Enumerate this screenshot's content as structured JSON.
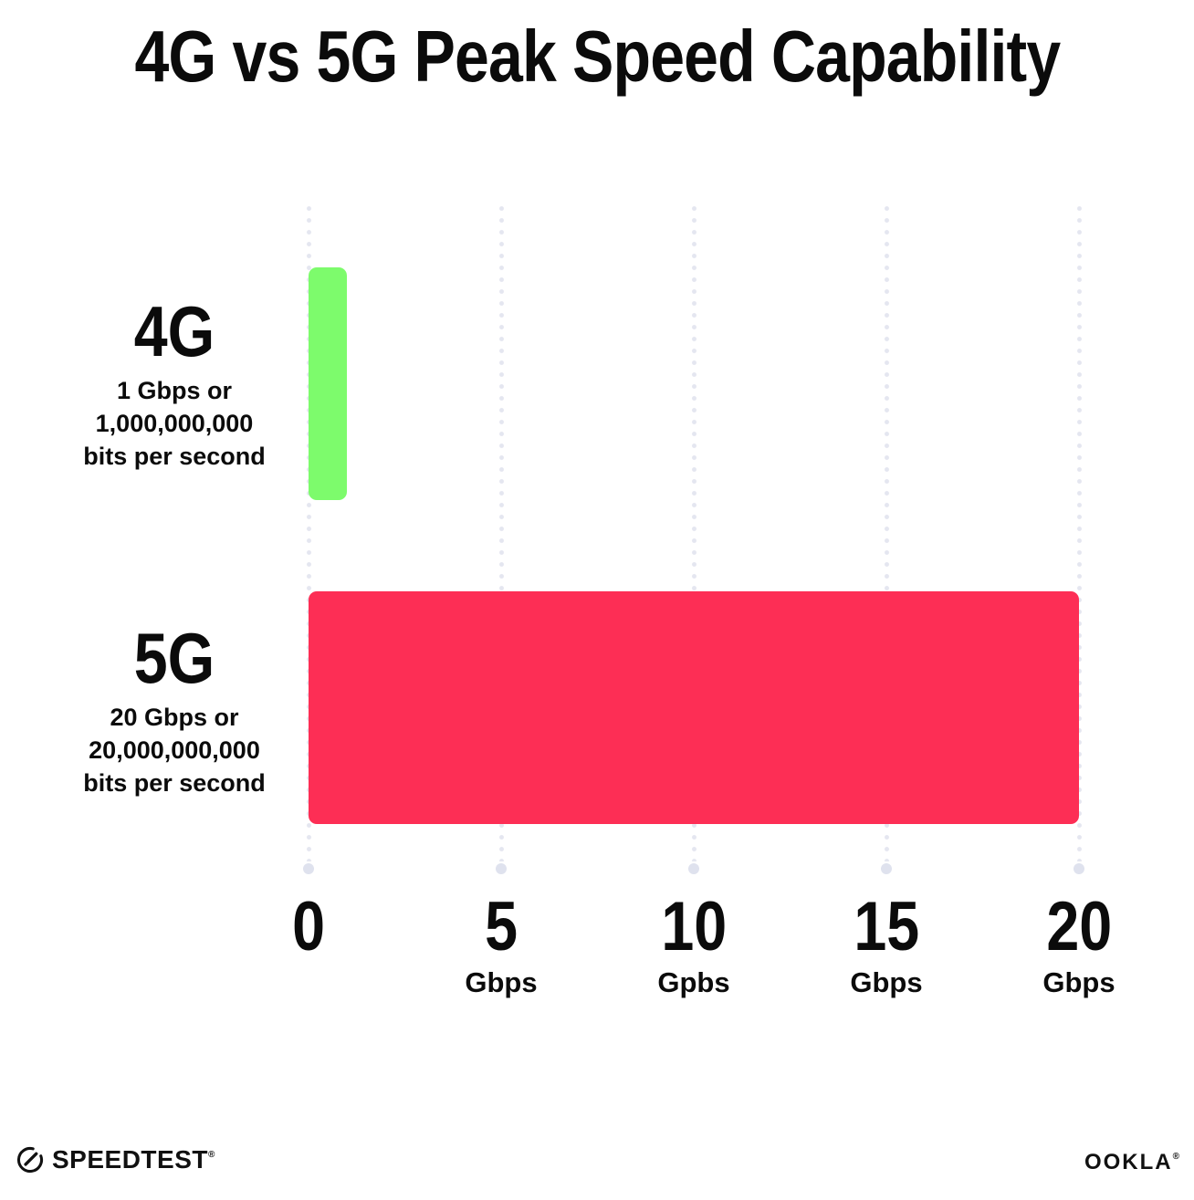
{
  "title": "4G vs 5G Peak Speed Capability",
  "colors": {
    "bar_4g_green": "#7DFB6C",
    "bar_5g_pink": "#FD2E55",
    "grid_dot": "#E4E6F0",
    "text": "#0B0B0B"
  },
  "chart_data": {
    "type": "bar",
    "orientation": "horizontal",
    "title": "4G vs 5G Peak Speed Capability",
    "xlabel": "Gbps",
    "xlim": [
      0,
      20
    ],
    "grid": "dotted vertical gridlines at each x tick, terminal dot at bottom",
    "legend": "none",
    "categories": [
      "4G",
      "5G"
    ],
    "values": [
      1,
      20
    ],
    "rows": [
      {
        "label": "4G",
        "value_gbps": 1,
        "sublabel_lines": [
          "1 Gbps or",
          "1,000,000,000",
          "bits per second"
        ],
        "color": "#7DFB6C"
      },
      {
        "label": "5G",
        "value_gbps": 20,
        "sublabel_lines": [
          "20 Gbps or",
          "20,000,000,000",
          "bits per second"
        ],
        "color": "#FD2E55"
      }
    ],
    "x_ticks": [
      {
        "value": 0,
        "label": "0",
        "unit": ""
      },
      {
        "value": 5,
        "label": "5",
        "unit": "Gbps"
      },
      {
        "value": 10,
        "label": "10",
        "unit": "Gpbs"
      },
      {
        "value": 15,
        "label": "15",
        "unit": "Gbps"
      },
      {
        "value": 20,
        "label": "20",
        "unit": "Gbps"
      }
    ]
  },
  "footer": {
    "speedtest_logo_text": "SPEEDTEST",
    "speedtest_trademark": "®",
    "ookla_logo_text": "OOKLA",
    "ookla_trademark": "®"
  }
}
